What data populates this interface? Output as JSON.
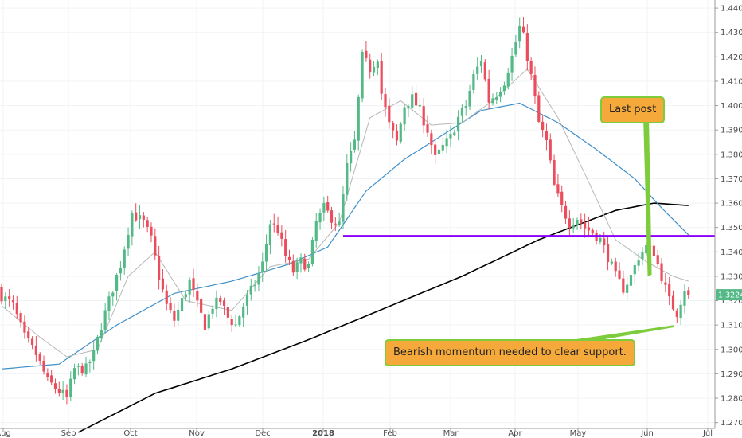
{
  "chart_data": {
    "type": "candlestick",
    "x_ticks": [
      "Aug",
      "Sep",
      "Oct",
      "Nov",
      "Dec",
      "2018",
      "Feb",
      "Mar",
      "Apr",
      "May",
      "Jun",
      "Jul"
    ],
    "y_ticks": [
      "1.44000",
      "1.43000",
      "1.42000",
      "1.41000",
      "1.40000",
      "1.39000",
      "1.38000",
      "1.37000",
      "1.36000",
      "1.35000",
      "1.34000",
      "1.33000",
      "1.32000",
      "1.31000",
      "1.30000",
      "1.29000",
      "1.28000",
      "1.27000"
    ],
    "ylim": [
      1.2676,
      1.4433
    ],
    "last_price": 1.32243,
    "last_price_label": "1.32243",
    "support_level": 1.3465,
    "close_anchors": [
      [
        0,
        1.322
      ],
      [
        3,
        1.318
      ],
      [
        6,
        1.305
      ],
      [
        9,
        1.298
      ],
      [
        12,
        1.287
      ],
      [
        15,
        1.283
      ],
      [
        17,
        1.28
      ],
      [
        19,
        1.292
      ],
      [
        22,
        1.292
      ],
      [
        24,
        1.298
      ],
      [
        26,
        1.31
      ],
      [
        28,
        1.32
      ],
      [
        31,
        1.335
      ],
      [
        34,
        1.356
      ],
      [
        37,
        1.352
      ],
      [
        39,
        1.345
      ],
      [
        41,
        1.33
      ],
      [
        43,
        1.318
      ],
      [
        45,
        1.312
      ],
      [
        47,
        1.32
      ],
      [
        49,
        1.328
      ],
      [
        51,
        1.318
      ],
      [
        53,
        1.31
      ],
      [
        55,
        1.318
      ],
      [
        57,
        1.32
      ],
      [
        59,
        1.313
      ],
      [
        61,
        1.31
      ],
      [
        63,
        1.318
      ],
      [
        66,
        1.327
      ],
      [
        68,
        1.335
      ],
      [
        70,
        1.352
      ],
      [
        72,
        1.349
      ],
      [
        74,
        1.338
      ],
      [
        76,
        1.332
      ],
      [
        78,
        1.336
      ],
      [
        80,
        1.334
      ],
      [
        82,
        1.352
      ],
      [
        84,
        1.358
      ],
      [
        86,
        1.354
      ],
      [
        88,
        1.351
      ],
      [
        90,
        1.375
      ],
      [
        92,
        1.385
      ],
      [
        94,
        1.42
      ],
      [
        96,
        1.415
      ],
      [
        98,
        1.42
      ],
      [
        99,
        1.405
      ],
      [
        101,
        1.392
      ],
      [
        103,
        1.385
      ],
      [
        105,
        1.4
      ],
      [
        107,
        1.403
      ],
      [
        109,
        1.398
      ],
      [
        111,
        1.39
      ],
      [
        113,
        1.378
      ],
      [
        115,
        1.383
      ],
      [
        117,
        1.387
      ],
      [
        119,
        1.395
      ],
      [
        121,
        1.4
      ],
      [
        123,
        1.412
      ],
      [
        125,
        1.419
      ],
      [
        127,
        1.402
      ],
      [
        129,
        1.405
      ],
      [
        131,
        1.41
      ],
      [
        133,
        1.42
      ],
      [
        135,
        1.432
      ],
      [
        136,
        1.428
      ],
      [
        138,
        1.412
      ],
      [
        140,
        1.393
      ],
      [
        142,
        1.385
      ],
      [
        144,
        1.367
      ],
      [
        146,
        1.358
      ],
      [
        148,
        1.352
      ],
      [
        150,
        1.354
      ],
      [
        152,
        1.35
      ],
      [
        154,
        1.348
      ],
      [
        156,
        1.345
      ],
      [
        158,
        1.338
      ],
      [
        160,
        1.33
      ],
      [
        162,
        1.325
      ],
      [
        164,
        1.33
      ],
      [
        166,
        1.338
      ],
      [
        168,
        1.342
      ],
      [
        170,
        1.34
      ],
      [
        172,
        1.33
      ],
      [
        174,
        1.32
      ],
      [
        176,
        1.315
      ],
      [
        178,
        1.325
      ],
      [
        179,
        1.3224
      ]
    ],
    "ma_fast_anchors": [
      [
        0,
        1.318
      ],
      [
        10,
        1.305
      ],
      [
        17,
        1.297
      ],
      [
        25,
        1.3
      ],
      [
        33,
        1.33
      ],
      [
        40,
        1.34
      ],
      [
        48,
        1.32
      ],
      [
        60,
        1.316
      ],
      [
        70,
        1.334
      ],
      [
        80,
        1.337
      ],
      [
        88,
        1.352
      ],
      [
        96,
        1.395
      ],
      [
        104,
        1.402
      ],
      [
        112,
        1.392
      ],
      [
        120,
        1.393
      ],
      [
        128,
        1.402
      ],
      [
        137,
        1.415
      ],
      [
        145,
        1.395
      ],
      [
        152,
        1.372
      ],
      [
        160,
        1.345
      ],
      [
        168,
        1.336
      ],
      [
        175,
        1.33
      ],
      [
        179,
        1.328
      ]
    ],
    "ma_mid_anchors": [
      [
        0,
        1.292
      ],
      [
        15,
        1.294
      ],
      [
        30,
        1.31
      ],
      [
        45,
        1.323
      ],
      [
        60,
        1.328
      ],
      [
        75,
        1.335
      ],
      [
        85,
        1.342
      ],
      [
        95,
        1.365
      ],
      [
        105,
        1.378
      ],
      [
        115,
        1.388
      ],
      [
        125,
        1.398
      ],
      [
        135,
        1.401
      ],
      [
        145,
        1.393
      ],
      [
        155,
        1.382
      ],
      [
        165,
        1.37
      ],
      [
        172,
        1.358
      ],
      [
        179,
        1.347
      ]
    ],
    "ma_slow_anchors": [
      [
        20,
        1.266
      ],
      [
        40,
        1.282
      ],
      [
        60,
        1.292
      ],
      [
        80,
        1.304
      ],
      [
        100,
        1.317
      ],
      [
        120,
        1.33
      ],
      [
        140,
        1.345
      ],
      [
        160,
        1.357
      ],
      [
        170,
        1.36
      ],
      [
        179,
        1.359
      ]
    ],
    "annotations": [
      {
        "text": "Last post",
        "target": [
          169,
          1.33
        ]
      },
      {
        "text": "Bearish momentum needed to clear support.",
        "target": [
          175,
          1.31
        ]
      }
    ],
    "colors": {
      "up": "#53b987",
      "down": "#eb4d5c",
      "ma_fast": "#b7b7b7",
      "ma_mid": "#3f8fc9",
      "ma_slow": "#000000",
      "support": "#8b00ff",
      "callout_fill": "#f5a93a",
      "callout_border": "#7ccc3b",
      "price_tag": "#53b987"
    }
  }
}
